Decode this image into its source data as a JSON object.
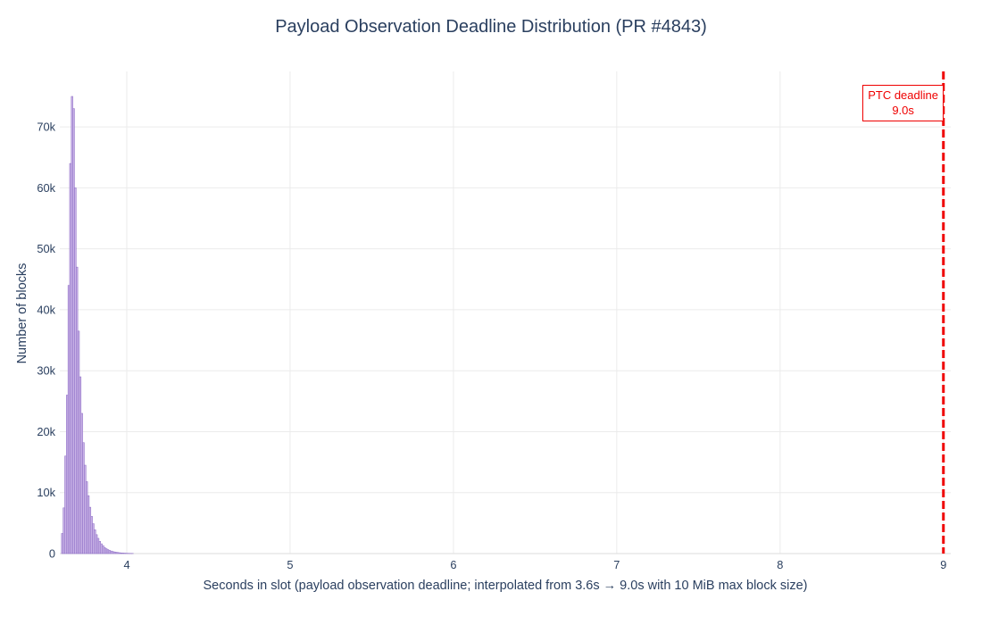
{
  "title": "Payload Observation Deadline Distribution (PR #4843)",
  "colors": {
    "text": "#2a3f5f",
    "grid": "#ebebeb",
    "axis_line": "#e2e2e2",
    "bar_fill": "#c9b3e6",
    "bar_edge": "#8f6fc7",
    "deadline_red": "#ef0000",
    "background": "#ffffff"
  },
  "chart_data": {
    "type": "bar",
    "subtype": "histogram",
    "title": "Payload Observation Deadline Distribution (PR #4843)",
    "xlabel": "Seconds in slot (payload observation deadline; interpolated from 3.6s → 9.0s with 10 MiB max block size)",
    "ylabel": "Number of blocks",
    "bin_start": 3.6,
    "bin_width": 0.01,
    "counts": [
      3300,
      7500,
      16000,
      26000,
      44000,
      64000,
      75000,
      73000,
      60000,
      47000,
      36500,
      29000,
      23000,
      18200,
      14500,
      11800,
      9500,
      7600,
      6100,
      4900,
      3900,
      3100,
      2500,
      2000,
      1600,
      1300,
      1000,
      800,
      650,
      520,
      420,
      340,
      270,
      220,
      180,
      140,
      110,
      90,
      70,
      55,
      45,
      35,
      28,
      22,
      18,
      14,
      11,
      9,
      7,
      5
    ],
    "xlim": [
      3.59,
      9.045
    ],
    "ylim": [
      0,
      79100
    ],
    "grid": true,
    "legend": "none",
    "xticks": {
      "values": [
        4,
        5,
        6,
        7,
        8,
        9
      ],
      "labels": [
        "4",
        "5",
        "6",
        "7",
        "8",
        "9"
      ]
    },
    "yticks": {
      "values": [
        0,
        10000,
        20000,
        30000,
        40000,
        50000,
        60000,
        70000
      ],
      "labels": [
        "0",
        "10k",
        "20k",
        "30k",
        "40k",
        "50k",
        "60k",
        "70k"
      ]
    },
    "deadline_line": {
      "x": 9.0,
      "color": "#ef0000",
      "width": 3,
      "dash": [
        9,
        4
      ]
    },
    "annotation": {
      "line1": "PTC deadline",
      "line2": "9.0s",
      "color": "#ef0000"
    }
  }
}
